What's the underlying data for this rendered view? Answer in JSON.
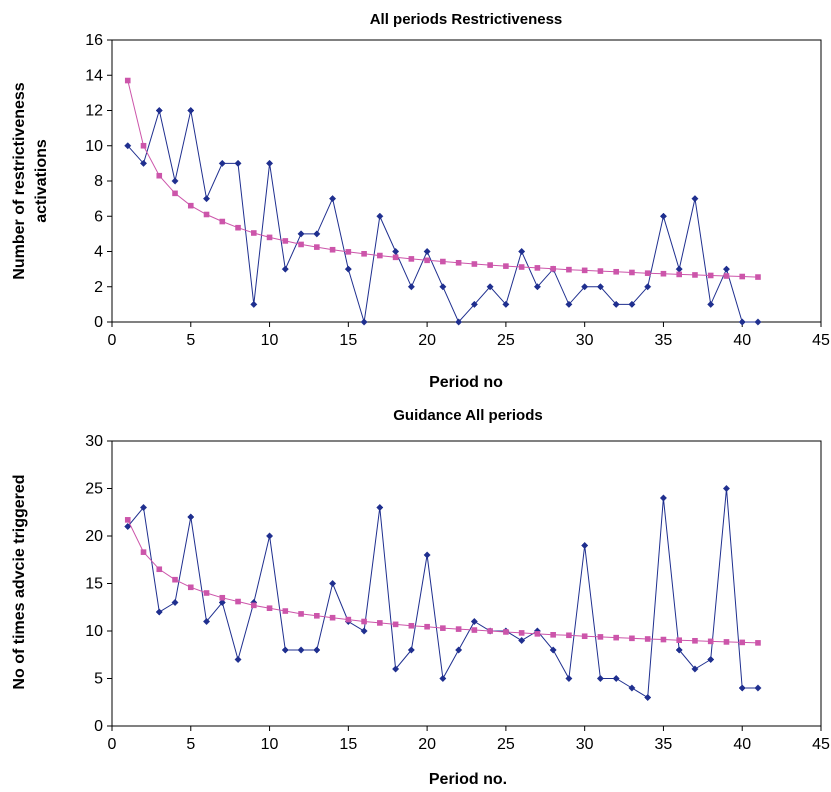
{
  "charts": [
    {
      "type": "line",
      "title": "All periods Restrictiveness",
      "xlabel": "Period no",
      "ylabel": [
        "Number of restrictiveness",
        "activations"
      ],
      "xlim": [
        0,
        45
      ],
      "ylim": [
        0,
        16
      ],
      "xticks": [
        0,
        5,
        10,
        15,
        20,
        25,
        30,
        35,
        40,
        45
      ],
      "yticks": [
        0,
        2,
        4,
        6,
        8,
        10,
        12,
        14,
        16
      ],
      "grid": false,
      "legend": "none",
      "series": [
        {
          "color": "#1f2f8f",
          "marker": "diamond",
          "x": [
            1,
            2,
            3,
            4,
            5,
            6,
            7,
            8,
            9,
            10,
            11,
            12,
            13,
            14,
            15,
            16,
            17,
            18,
            19,
            20,
            21,
            22,
            23,
            24,
            25,
            26,
            27,
            28,
            29,
            30,
            31,
            32,
            33,
            34,
            35,
            36,
            37,
            38,
            39,
            40,
            41
          ],
          "values": [
            10,
            9,
            12,
            8,
            12,
            7,
            9,
            9,
            1,
            9,
            3,
            5,
            5,
            7,
            3,
            0,
            6,
            4,
            2,
            4,
            2,
            0,
            1,
            2,
            1,
            4,
            2,
            3,
            1,
            2,
            2,
            1,
            1,
            2,
            6,
            3,
            7,
            1,
            3,
            0,
            0
          ]
        },
        {
          "color": "#cc55aa",
          "marker": "square",
          "x": [
            1,
            2,
            3,
            4,
            5,
            6,
            7,
            8,
            9,
            10,
            11,
            12,
            13,
            14,
            15,
            16,
            17,
            18,
            19,
            20,
            21,
            22,
            23,
            24,
            25,
            26,
            27,
            28,
            29,
            30,
            31,
            32,
            33,
            34,
            35,
            36,
            37,
            38,
            39,
            40,
            41
          ],
          "values": [
            13.7,
            10.0,
            8.3,
            7.3,
            6.6,
            6.1,
            5.7,
            5.35,
            5.05,
            4.8,
            4.6,
            4.4,
            4.25,
            4.1,
            3.98,
            3.87,
            3.77,
            3.67,
            3.58,
            3.5,
            3.43,
            3.36,
            3.29,
            3.23,
            3.17,
            3.12,
            3.07,
            3.02,
            2.97,
            2.93,
            2.89,
            2.85,
            2.81,
            2.77,
            2.74,
            2.7,
            2.67,
            2.64,
            2.61,
            2.58,
            2.55
          ]
        }
      ]
    },
    {
      "type": "line",
      "title": "Guidance All periods",
      "xlabel": "Period no.",
      "ylabel": [
        "No of times advcie triggered"
      ],
      "xlim": [
        0,
        45
      ],
      "ylim": [
        0,
        30
      ],
      "xticks": [
        0,
        5,
        10,
        15,
        20,
        25,
        30,
        35,
        40,
        45
      ],
      "yticks": [
        0,
        5,
        10,
        15,
        20,
        25,
        30
      ],
      "grid": false,
      "legend": "none",
      "series": [
        {
          "color": "#1f2f8f",
          "marker": "diamond",
          "x": [
            1,
            2,
            3,
            4,
            5,
            6,
            7,
            8,
            9,
            10,
            11,
            12,
            13,
            14,
            15,
            16,
            17,
            18,
            19,
            20,
            21,
            22,
            23,
            24,
            25,
            26,
            27,
            28,
            29,
            30,
            31,
            32,
            33,
            34,
            35,
            36,
            37,
            38,
            39,
            40,
            41
          ],
          "values": [
            21,
            23,
            12,
            13,
            22,
            11,
            13,
            7,
            13,
            20,
            8,
            8,
            8,
            15,
            11,
            10,
            23,
            6,
            8,
            18,
            5,
            8,
            11,
            10,
            10,
            9,
            10,
            8,
            5,
            19,
            5,
            5,
            4,
            3,
            24,
            8,
            6,
            7,
            25,
            4,
            4
          ]
        },
        {
          "color": "#cc55aa",
          "marker": "square",
          "x": [
            1,
            2,
            3,
            4,
            5,
            6,
            7,
            8,
            9,
            10,
            11,
            12,
            13,
            14,
            15,
            16,
            17,
            18,
            19,
            20,
            21,
            22,
            23,
            24,
            25,
            26,
            27,
            28,
            29,
            30,
            31,
            32,
            33,
            34,
            35,
            36,
            37,
            38,
            39,
            40,
            41
          ],
          "values": [
            21.7,
            18.3,
            16.5,
            15.4,
            14.6,
            14.0,
            13.5,
            13.1,
            12.7,
            12.4,
            12.1,
            11.8,
            11.6,
            11.4,
            11.2,
            11.0,
            10.85,
            10.7,
            10.55,
            10.45,
            10.3,
            10.2,
            10.1,
            10.0,
            9.9,
            9.8,
            9.7,
            9.6,
            9.55,
            9.45,
            9.38,
            9.3,
            9.23,
            9.16,
            9.1,
            9.03,
            8.97,
            8.91,
            8.85,
            8.8,
            8.75
          ]
        }
      ]
    }
  ]
}
